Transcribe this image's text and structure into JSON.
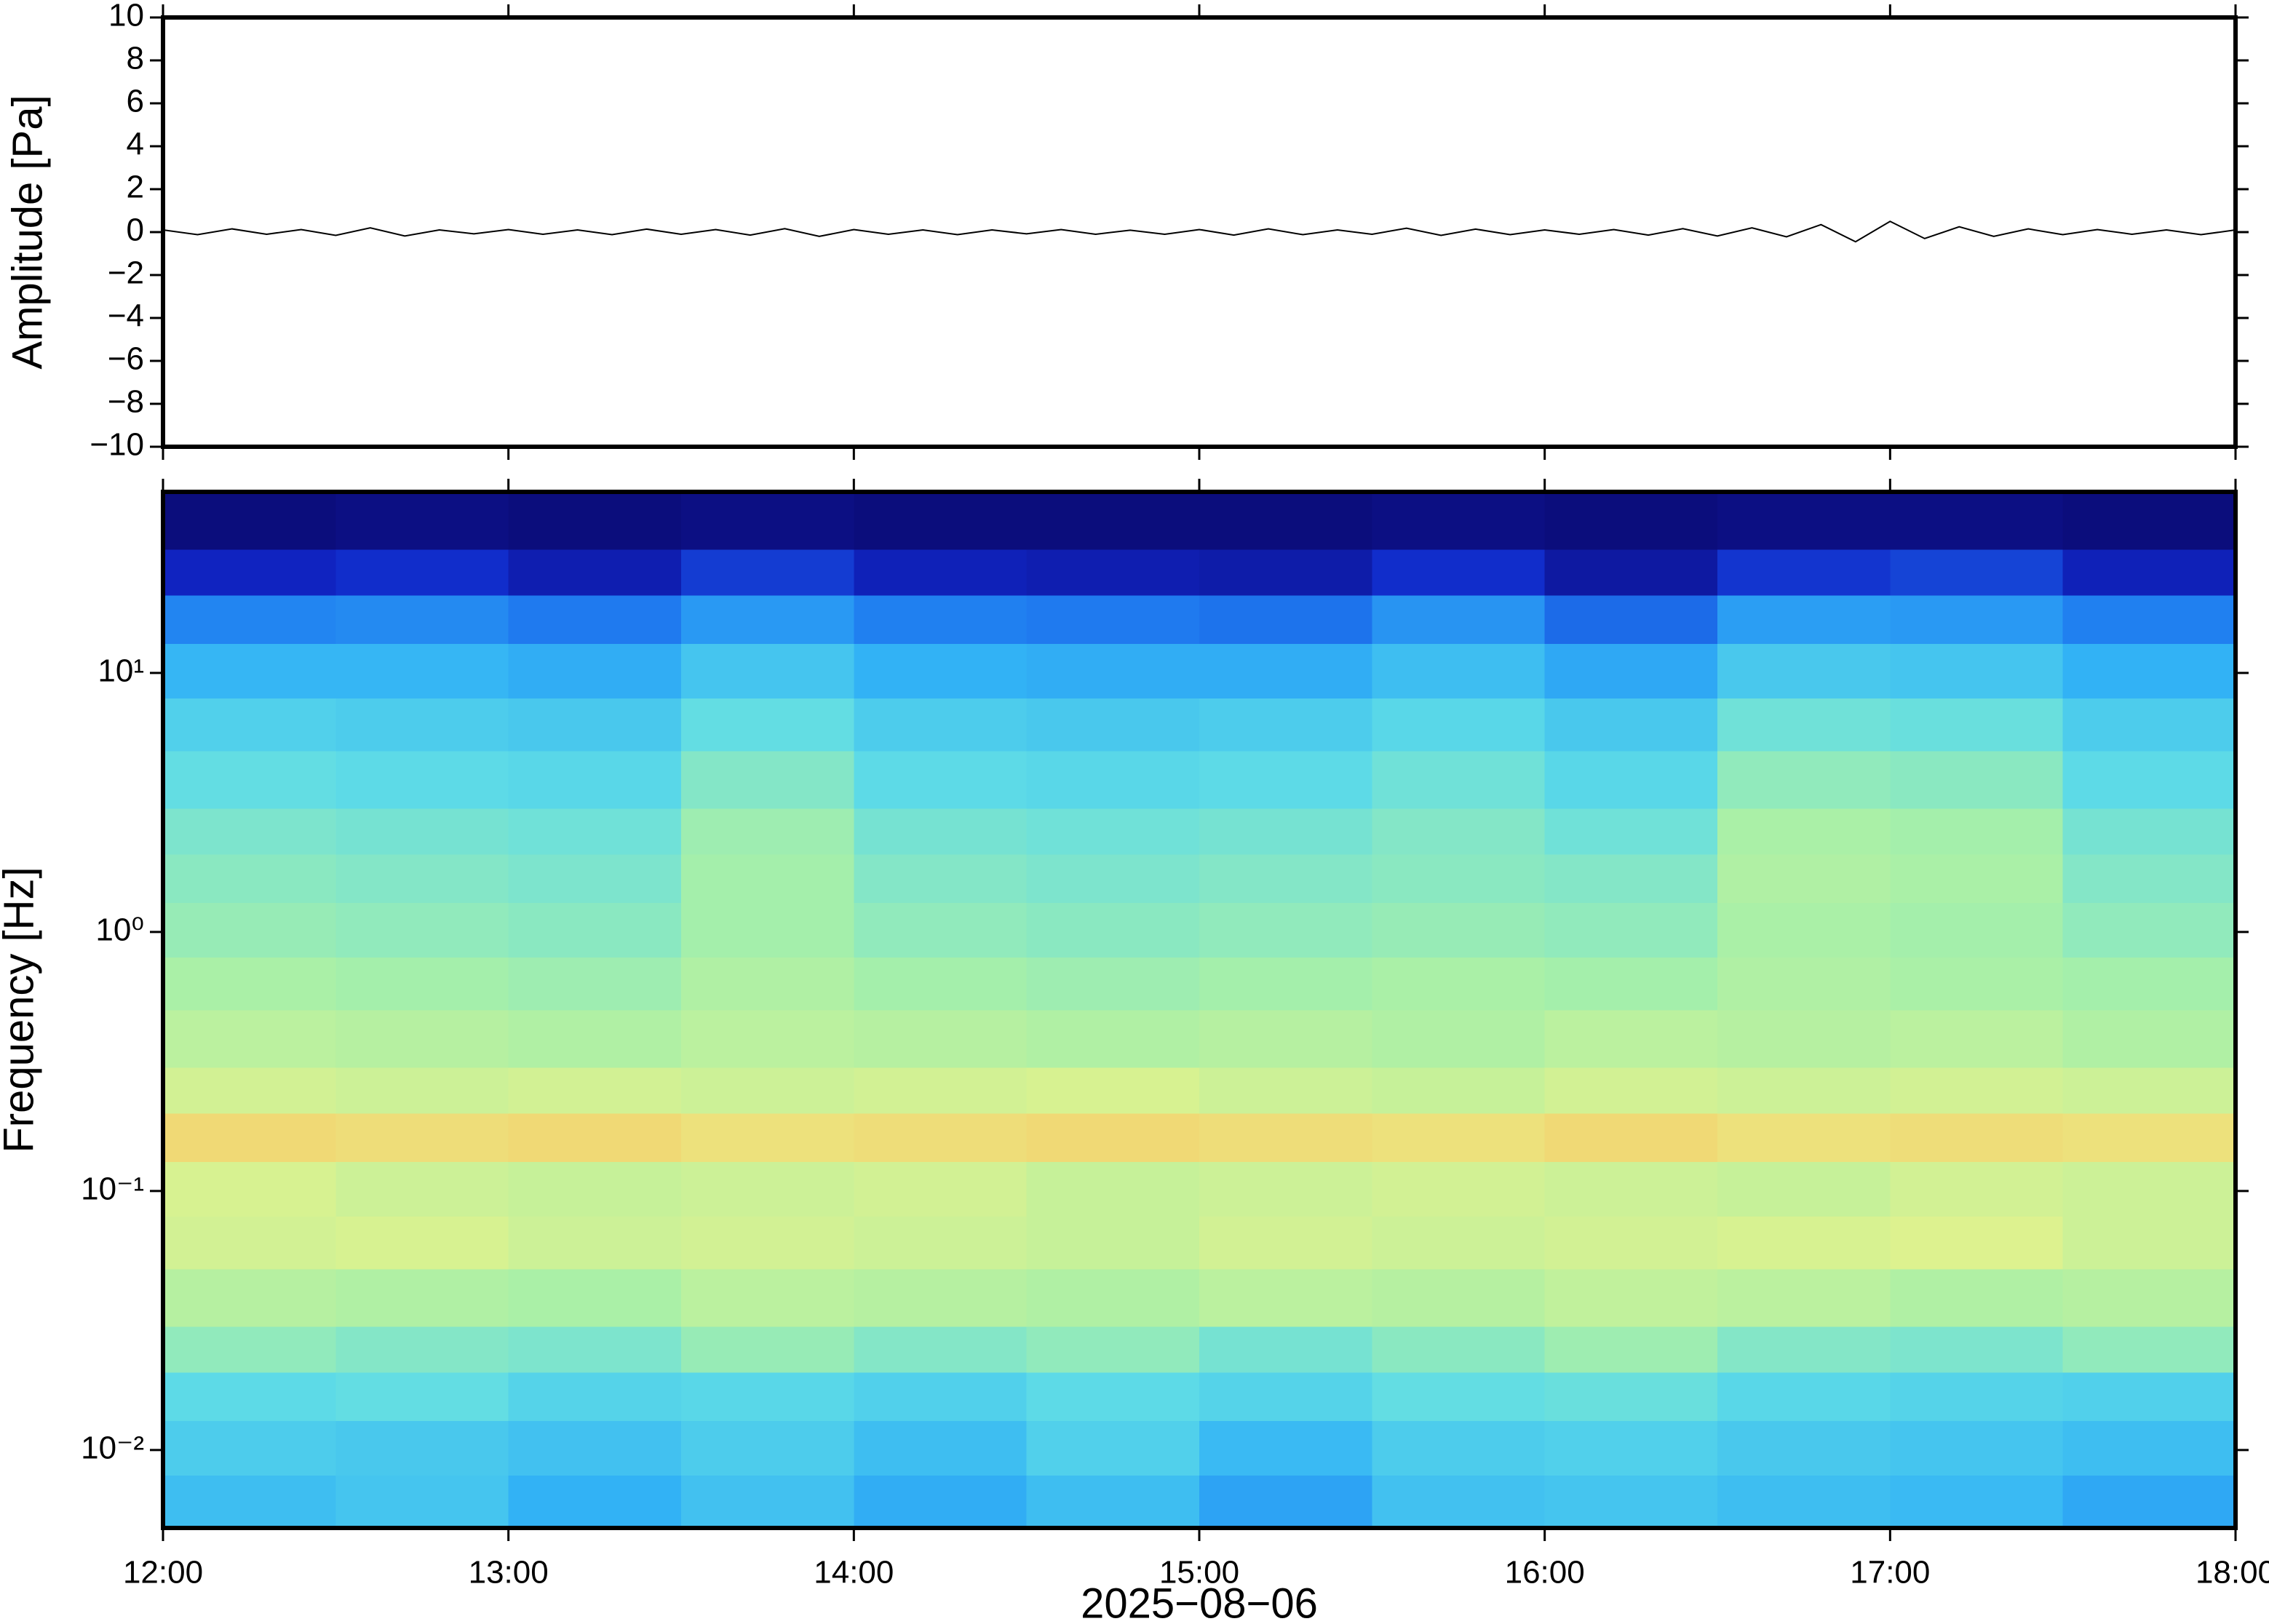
{
  "chart_data": [
    {
      "type": "line",
      "ylabel": "Amplitude [Pa]",
      "xlim": [
        12,
        18
      ],
      "xticks": [
        12,
        13,
        14,
        15,
        16,
        17,
        18
      ],
      "ylim": [
        -10,
        10
      ],
      "yticks": [
        {
          "value": -10,
          "label": "−10"
        },
        {
          "value": -8,
          "label": "−8"
        },
        {
          "value": -6,
          "label": "−6"
        },
        {
          "value": -4,
          "label": "−4"
        },
        {
          "value": -2,
          "label": "−2"
        },
        0,
        2,
        4,
        6,
        8,
        10
      ],
      "color": "#000000",
      "x": [
        12.0,
        12.1,
        12.2,
        12.3,
        12.4,
        12.5,
        12.6,
        12.7,
        12.8,
        12.9,
        13.0,
        13.1,
        13.2,
        13.3,
        13.4,
        13.5,
        13.6,
        13.7,
        13.8,
        13.9,
        14.0,
        14.1,
        14.2,
        14.3,
        14.4,
        14.5,
        14.6,
        14.7,
        14.8,
        14.9,
        15.0,
        15.1,
        15.2,
        15.3,
        15.4,
        15.5,
        15.6,
        15.7,
        15.8,
        15.9,
        16.0,
        16.1,
        16.2,
        16.3,
        16.4,
        16.5,
        16.6,
        16.7,
        16.8,
        16.9,
        17.0,
        17.1,
        17.2,
        17.3,
        17.4,
        17.5,
        17.6,
        17.7,
        17.8,
        17.9,
        18.0
      ],
      "values": [
        0.1,
        -0.12,
        0.15,
        -0.1,
        0.12,
        -0.15,
        0.2,
        -0.18,
        0.1,
        -0.08,
        0.12,
        -0.1,
        0.1,
        -0.12,
        0.14,
        -0.1,
        0.12,
        -0.14,
        0.16,
        -0.2,
        0.12,
        -0.1,
        0.1,
        -0.12,
        0.1,
        -0.08,
        0.12,
        -0.1,
        0.09,
        -0.1,
        0.12,
        -0.14,
        0.15,
        -0.12,
        0.1,
        -0.1,
        0.18,
        -0.15,
        0.14,
        -0.12,
        0.1,
        -0.1,
        0.12,
        -0.14,
        0.16,
        -0.18,
        0.2,
        -0.22,
        0.35,
        -0.45,
        0.5,
        -0.3,
        0.25,
        -0.2,
        0.15,
        -0.12,
        0.12,
        -0.1,
        0.1,
        -0.12,
        0.1
      ]
    },
    {
      "type": "heatmap",
      "ylabel": "Frequency [Hz]",
      "xlabel": "2025−08−06",
      "ylog": true,
      "xlim": [
        12,
        18
      ],
      "xticks": [
        {
          "value": 12,
          "label": "12:00"
        },
        {
          "value": 13,
          "label": "13:00"
        },
        {
          "value": 14,
          "label": "14:00"
        },
        {
          "value": 15,
          "label": "15:00"
        },
        {
          "value": 16,
          "label": "16:00"
        },
        {
          "value": 17,
          "label": "17:00"
        },
        {
          "value": 18,
          "label": "18:00"
        }
      ],
      "ylim": [
        0.005,
        50
      ],
      "yticks": [
        {
          "value": 0.01,
          "label": "10⁻²"
        },
        {
          "value": 0.1,
          "label": "10⁻¹"
        },
        {
          "value": 1,
          "label": "10⁰"
        },
        {
          "value": 10,
          "label": "10¹"
        }
      ],
      "x_edges": [
        12,
        12.5,
        13,
        13.5,
        14,
        14.5,
        15,
        15.5,
        16,
        16.5,
        17,
        17.5,
        18
      ],
      "y_edges": [
        0.005,
        0.008,
        0.013,
        0.02,
        0.03,
        0.05,
        0.08,
        0.13,
        0.2,
        0.3,
        0.5,
        0.8,
        1.3,
        2,
        3,
        5,
        8,
        13,
        20,
        30,
        50
      ],
      "zlim": [
        0,
        1
      ],
      "colormap": [
        "#0b0a74",
        "#1026c8",
        "#1f7cf0",
        "#33b4f5",
        "#5fdce6",
        "#a8f0a8",
        "#e6f28a",
        "#f7c766",
        "#f2803f",
        "#d42a1e"
      ],
      "values": [
        [
          0.36,
          0.38,
          0.33,
          0.37,
          0.32,
          0.36,
          0.3,
          0.37,
          0.38,
          0.36,
          0.35,
          0.31
        ],
        [
          0.4,
          0.39,
          0.37,
          0.4,
          0.36,
          0.41,
          0.35,
          0.4,
          0.41,
          0.39,
          0.38,
          0.36
        ],
        [
          0.44,
          0.45,
          0.42,
          0.43,
          0.41,
          0.44,
          0.42,
          0.45,
          0.46,
          0.43,
          0.42,
          0.41
        ],
        [
          0.52,
          0.5,
          0.49,
          0.53,
          0.5,
          0.52,
          0.48,
          0.51,
          0.54,
          0.5,
          0.49,
          0.52
        ],
        [
          0.58,
          0.57,
          0.56,
          0.59,
          0.58,
          0.57,
          0.59,
          0.58,
          0.6,
          0.59,
          0.57,
          0.58
        ],
        [
          0.63,
          0.64,
          0.62,
          0.63,
          0.62,
          0.61,
          0.63,
          0.62,
          0.63,
          0.64,
          0.65,
          0.62
        ],
        [
          0.64,
          0.62,
          0.61,
          0.62,
          0.63,
          0.61,
          0.62,
          0.63,
          0.62,
          0.61,
          0.63,
          0.62
        ],
        [
          0.73,
          0.72,
          0.73,
          0.71,
          0.72,
          0.73,
          0.72,
          0.71,
          0.73,
          0.71,
          0.72,
          0.71
        ],
        [
          0.63,
          0.62,
          0.63,
          0.62,
          0.63,
          0.64,
          0.62,
          0.61,
          0.63,
          0.62,
          0.63,
          0.62
        ],
        [
          0.59,
          0.58,
          0.57,
          0.59,
          0.58,
          0.57,
          0.58,
          0.57,
          0.59,
          0.58,
          0.59,
          0.57
        ],
        [
          0.56,
          0.55,
          0.54,
          0.57,
          0.55,
          0.54,
          0.55,
          0.56,
          0.55,
          0.57,
          0.56,
          0.55
        ],
        [
          0.53,
          0.52,
          0.51,
          0.55,
          0.52,
          0.51,
          0.52,
          0.53,
          0.52,
          0.56,
          0.55,
          0.52
        ],
        [
          0.51,
          0.5,
          0.49,
          0.55,
          0.5,
          0.49,
          0.5,
          0.51,
          0.5,
          0.57,
          0.56,
          0.5
        ],
        [
          0.49,
          0.48,
          0.47,
          0.54,
          0.48,
          0.47,
          0.48,
          0.5,
          0.47,
          0.56,
          0.55,
          0.48
        ],
        [
          0.45,
          0.44,
          0.43,
          0.5,
          0.44,
          0.43,
          0.44,
          0.47,
          0.43,
          0.52,
          0.51,
          0.44
        ],
        [
          0.41,
          0.4,
          0.39,
          0.45,
          0.4,
          0.39,
          0.4,
          0.43,
          0.39,
          0.47,
          0.46,
          0.4
        ],
        [
          0.34,
          0.34,
          0.32,
          0.38,
          0.33,
          0.32,
          0.32,
          0.36,
          0.31,
          0.39,
          0.38,
          0.33
        ],
        [
          0.24,
          0.25,
          0.22,
          0.28,
          0.23,
          0.22,
          0.21,
          0.27,
          0.2,
          0.29,
          0.28,
          0.23
        ],
        [
          0.1,
          0.12,
          0.08,
          0.14,
          0.09,
          0.08,
          0.07,
          0.12,
          0.06,
          0.13,
          0.15,
          0.09
        ],
        [
          0.01,
          0.02,
          0.01,
          0.02,
          0.01,
          0.01,
          0.01,
          0.02,
          0.01,
          0.02,
          0.02,
          0.01
        ]
      ]
    }
  ]
}
